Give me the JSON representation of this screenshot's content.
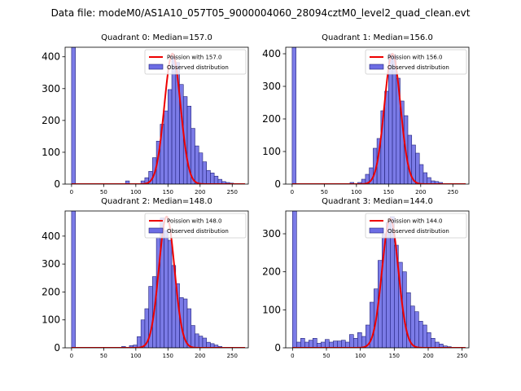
{
  "figure": {
    "suptitle": "Data file: modeM0/AS1A10_057T05_9000004060_28094cztM0_level2_quad_clean.evt",
    "colors": {
      "hist_face": "#6d6de4",
      "hist_edge": "#22227a",
      "poisson": "#ee0000"
    }
  },
  "chart_data": [
    {
      "type": "bar",
      "subtype": "histogram+line",
      "title": "Quadrant 0: Median=157.0",
      "median": 157.0,
      "xlim": [
        -10,
        275
      ],
      "ylim": [
        0,
        430
      ],
      "xticks": [
        0,
        50,
        100,
        150,
        200,
        250
      ],
      "yticks": [
        0,
        100,
        200,
        300,
        400
      ],
      "bin_width": 6,
      "bins": [
        {
          "x": 0,
          "y": 430
        },
        {
          "x": 84,
          "y": 10
        },
        {
          "x": 108,
          "y": 10
        },
        {
          "x": 114,
          "y": 20
        },
        {
          "x": 120,
          "y": 40
        },
        {
          "x": 126,
          "y": 83
        },
        {
          "x": 132,
          "y": 135
        },
        {
          "x": 138,
          "y": 188
        },
        {
          "x": 144,
          "y": 230
        },
        {
          "x": 150,
          "y": 297
        },
        {
          "x": 156,
          "y": 400
        },
        {
          "x": 162,
          "y": 382
        },
        {
          "x": 168,
          "y": 313
        },
        {
          "x": 174,
          "y": 275
        },
        {
          "x": 180,
          "y": 245
        },
        {
          "x": 186,
          "y": 175
        },
        {
          "x": 192,
          "y": 120
        },
        {
          "x": 198,
          "y": 98
        },
        {
          "x": 204,
          "y": 70
        },
        {
          "x": 210,
          "y": 43
        },
        {
          "x": 216,
          "y": 35
        },
        {
          "x": 222,
          "y": 25
        },
        {
          "x": 228,
          "y": 15
        },
        {
          "x": 234,
          "y": 8
        },
        {
          "x": 240,
          "y": 5
        },
        {
          "x": 246,
          "y": 3
        }
      ],
      "poisson_peak": 410,
      "legend": {
        "line": "Poission with 157.0",
        "hist": "Observed distribution",
        "placement": "top-right"
      }
    },
    {
      "type": "bar",
      "subtype": "histogram+line",
      "title": "Quadrant 1: Median=156.0",
      "median": 156.0,
      "xlim": [
        -10,
        275
      ],
      "ylim": [
        0,
        420
      ],
      "xticks": [
        0,
        50,
        100,
        150,
        200,
        250
      ],
      "yticks": [
        0,
        100,
        200,
        300,
        400
      ],
      "bin_width": 6,
      "bins": [
        {
          "x": 0,
          "y": 420
        },
        {
          "x": 90,
          "y": 5
        },
        {
          "x": 102,
          "y": 5
        },
        {
          "x": 108,
          "y": 15
        },
        {
          "x": 114,
          "y": 30
        },
        {
          "x": 120,
          "y": 50
        },
        {
          "x": 126,
          "y": 110
        },
        {
          "x": 132,
          "y": 140
        },
        {
          "x": 138,
          "y": 225
        },
        {
          "x": 144,
          "y": 285
        },
        {
          "x": 150,
          "y": 400
        },
        {
          "x": 156,
          "y": 395
        },
        {
          "x": 162,
          "y": 325
        },
        {
          "x": 168,
          "y": 255
        },
        {
          "x": 174,
          "y": 210
        },
        {
          "x": 180,
          "y": 150
        },
        {
          "x": 186,
          "y": 120
        },
        {
          "x": 192,
          "y": 95
        },
        {
          "x": 198,
          "y": 60
        },
        {
          "x": 204,
          "y": 35
        },
        {
          "x": 210,
          "y": 20
        },
        {
          "x": 216,
          "y": 10
        },
        {
          "x": 222,
          "y": 8
        },
        {
          "x": 228,
          "y": 5
        }
      ],
      "poisson_peak": 400,
      "legend": {
        "line": "Poission with 156.0",
        "hist": "Observed distribution",
        "placement": "top-right"
      }
    },
    {
      "type": "bar",
      "subtype": "histogram+line",
      "title": "Quadrant 2: Median=148.0",
      "median": 148.0,
      "xlim": [
        -10,
        275
      ],
      "ylim": [
        0,
        490
      ],
      "xticks": [
        0,
        50,
        100,
        150,
        200,
        250
      ],
      "yticks": [
        0,
        100,
        200,
        300,
        400
      ],
      "bin_width": 6,
      "bins": [
        {
          "x": 0,
          "y": 490
        },
        {
          "x": 78,
          "y": 5
        },
        {
          "x": 90,
          "y": 8
        },
        {
          "x": 96,
          "y": 10
        },
        {
          "x": 102,
          "y": 40
        },
        {
          "x": 108,
          "y": 100
        },
        {
          "x": 114,
          "y": 140
        },
        {
          "x": 120,
          "y": 220
        },
        {
          "x": 126,
          "y": 255
        },
        {
          "x": 132,
          "y": 395
        },
        {
          "x": 138,
          "y": 465
        },
        {
          "x": 144,
          "y": 420
        },
        {
          "x": 150,
          "y": 385
        },
        {
          "x": 156,
          "y": 295
        },
        {
          "x": 162,
          "y": 230
        },
        {
          "x": 168,
          "y": 180
        },
        {
          "x": 174,
          "y": 175
        },
        {
          "x": 180,
          "y": 140
        },
        {
          "x": 186,
          "y": 80
        },
        {
          "x": 192,
          "y": 50
        },
        {
          "x": 198,
          "y": 42
        },
        {
          "x": 204,
          "y": 35
        },
        {
          "x": 210,
          "y": 20
        },
        {
          "x": 216,
          "y": 15
        },
        {
          "x": 222,
          "y": 10
        },
        {
          "x": 228,
          "y": 5
        }
      ],
      "poisson_peak": 470,
      "legend": {
        "line": "Poission with 148.0",
        "hist": "Observed distribution",
        "placement": "top-right"
      }
    },
    {
      "type": "bar",
      "subtype": "histogram+line",
      "title": "Quadrant 3: Median=144.0",
      "median": 144.0,
      "xlim": [
        -10,
        260
      ],
      "ylim": [
        0,
        360
      ],
      "xticks": [
        0,
        50,
        100,
        150,
        200,
        250
      ],
      "yticks": [
        0,
        100,
        200,
        300
      ],
      "bin_width": 6,
      "bins": [
        {
          "x": 0,
          "y": 360
        },
        {
          "x": 6,
          "y": 15
        },
        {
          "x": 12,
          "y": 25
        },
        {
          "x": 18,
          "y": 15
        },
        {
          "x": 24,
          "y": 20
        },
        {
          "x": 30,
          "y": 25
        },
        {
          "x": 36,
          "y": 12
        },
        {
          "x": 42,
          "y": 15
        },
        {
          "x": 48,
          "y": 22
        },
        {
          "x": 54,
          "y": 15
        },
        {
          "x": 60,
          "y": 18
        },
        {
          "x": 66,
          "y": 18
        },
        {
          "x": 72,
          "y": 20
        },
        {
          "x": 78,
          "y": 15
        },
        {
          "x": 84,
          "y": 35
        },
        {
          "x": 90,
          "y": 25
        },
        {
          "x": 96,
          "y": 40
        },
        {
          "x": 102,
          "y": 30
        },
        {
          "x": 108,
          "y": 60
        },
        {
          "x": 114,
          "y": 120
        },
        {
          "x": 120,
          "y": 155
        },
        {
          "x": 126,
          "y": 230
        },
        {
          "x": 132,
          "y": 300
        },
        {
          "x": 138,
          "y": 330
        },
        {
          "x": 144,
          "y": 345
        },
        {
          "x": 150,
          "y": 270
        },
        {
          "x": 156,
          "y": 225
        },
        {
          "x": 162,
          "y": 200
        },
        {
          "x": 168,
          "y": 145
        },
        {
          "x": 174,
          "y": 110
        },
        {
          "x": 180,
          "y": 95
        },
        {
          "x": 186,
          "y": 70
        },
        {
          "x": 192,
          "y": 60
        },
        {
          "x": 198,
          "y": 40
        },
        {
          "x": 204,
          "y": 25
        },
        {
          "x": 210,
          "y": 15
        },
        {
          "x": 216,
          "y": 10
        },
        {
          "x": 222,
          "y": 5
        },
        {
          "x": 228,
          "y": 3
        }
      ],
      "poisson_peak": 340,
      "legend": {
        "line": "Poission with 144.0",
        "hist": "Observed distribution",
        "placement": "top-right"
      }
    }
  ]
}
